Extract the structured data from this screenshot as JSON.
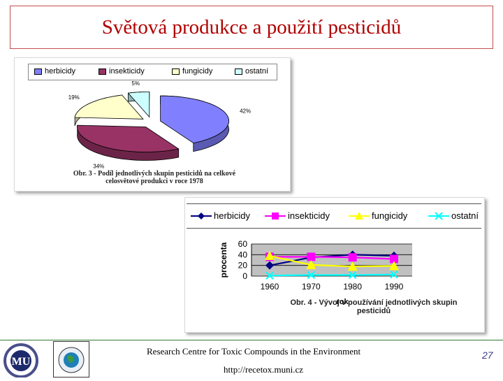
{
  "slide": {
    "title": "Světová produkce a použití pesticidů",
    "footer_org": "Research Centre for Toxic Compounds in the Environment",
    "footer_url": "http://recetox.muni.cz",
    "page_number": "27",
    "logo_left_text": "UNIVERSITAS MASARYKIANA BRUNENSIS",
    "logo_left_letters": "MU"
  },
  "chart_data": [
    {
      "type": "pie",
      "categories": [
        "herbicidy",
        "insekticidy",
        "fungicidy",
        "ostatní"
      ],
      "values": [
        42,
        34,
        19,
        5
      ],
      "data_labels": [
        "42%",
        "34%",
        "19%",
        "5%"
      ],
      "colors": [
        "#8080ff",
        "#993366",
        "#ffffcc",
        "#ccffff"
      ],
      "caption_line1": "Obr. 3 - Podíl jednotlivých skupin pesticidů na celkové",
      "caption_line2": "celosvětové produkci v roce 1978",
      "legend_position": "top"
    },
    {
      "type": "line",
      "x": [
        "1960",
        "1970",
        "1980",
        "1990"
      ],
      "series": [
        {
          "name": "herbicidy",
          "values": [
            20,
            35,
            40,
            38
          ],
          "color": "#000080",
          "marker": "diamond"
        },
        {
          "name": "insekticidy",
          "values": [
            36,
            36,
            35,
            32
          ],
          "color": "#ff00ff",
          "marker": "square"
        },
        {
          "name": "fungicidy",
          "values": [
            38,
            21,
            18,
            19
          ],
          "color": "#ffff00",
          "marker": "triangle"
        },
        {
          "name": "ostatní",
          "values": [
            1,
            2,
            2,
            3
          ],
          "color": "#00ffff",
          "marker": "x"
        }
      ],
      "ylabel": "procenta",
      "xlabel": "rok",
      "ylim": [
        0,
        60
      ],
      "yticks": [
        "0",
        "20",
        "40",
        "60"
      ],
      "caption_line1": "Obr. 4 - Vývoj v používání jednotlivých skupin",
      "caption_line2": "pesticidů",
      "grid": true,
      "legend_position": "top"
    }
  ]
}
